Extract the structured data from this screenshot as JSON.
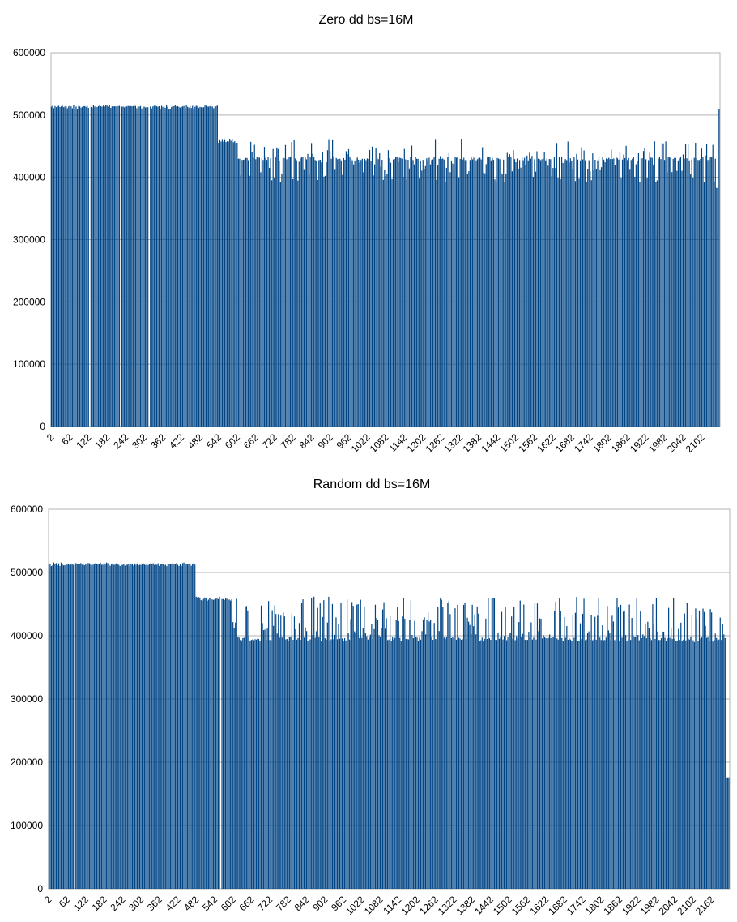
{
  "chart_data": [
    {
      "type": "bar",
      "title": "Zero dd bs=16M",
      "xlabel": "",
      "ylabel": "",
      "ylim": [
        0,
        600000
      ],
      "y_ticks": [
        "0",
        "100000",
        "200000",
        "300000",
        "400000",
        "500000",
        "600000"
      ],
      "x_start": 2,
      "x_step": 2,
      "x_end": 2160,
      "x_tick_labels": [
        "2",
        "62",
        "122",
        "182",
        "242",
        "302",
        "362",
        "422",
        "482",
        "542",
        "602",
        "662",
        "722",
        "782",
        "842",
        "902",
        "962",
        "1022",
        "1082",
        "1142",
        "1202",
        "1262",
        "1322",
        "1382",
        "1442",
        "1502",
        "1562",
        "1622",
        "1682",
        "1742",
        "1802",
        "1862",
        "1922",
        "1982",
        "2042",
        "2102"
      ],
      "grid": true,
      "legend": "none",
      "color": "#004586",
      "segments": [
        {
          "from": 2,
          "to": 542,
          "level": 513000,
          "min": 513000,
          "max": 515000
        },
        {
          "from": 542,
          "to": 600,
          "level": 459000,
          "min": 455000,
          "max": 462000
        },
        {
          "from": 600,
          "to": 2150,
          "level": 430000,
          "min": 392000,
          "max": 462000
        },
        {
          "from": 2150,
          "to": 2156,
          "level": 383000,
          "min": 383000,
          "max": 383000
        },
        {
          "from": 2156,
          "to": 2160,
          "level": 512000,
          "min": 510000,
          "max": 512000
        }
      ]
    },
    {
      "type": "bar",
      "title": "Random dd bs=16M",
      "xlabel": "",
      "ylabel": "",
      "ylim": [
        0,
        600000
      ],
      "y_ticks": [
        "0",
        "100000",
        "200000",
        "300000",
        "400000",
        "500000",
        "600000"
      ],
      "x_start": 2,
      "x_step": 2,
      "x_end": 2220,
      "x_tick_labels": [
        "2",
        "62",
        "122",
        "182",
        "242",
        "302",
        "362",
        "422",
        "482",
        "542",
        "602",
        "662",
        "722",
        "782",
        "842",
        "902",
        "962",
        "1022",
        "1082",
        "1142",
        "1202",
        "1262",
        "1322",
        "1382",
        "1442",
        "1502",
        "1562",
        "1622",
        "1682",
        "1742",
        "1802",
        "1862",
        "1922",
        "1982",
        "2042",
        "2102",
        "2162"
      ],
      "grid": true,
      "legend": "none",
      "color": "#004586",
      "segments": [
        {
          "from": 2,
          "to": 482,
          "level": 513000,
          "min": 512000,
          "max": 515000
        },
        {
          "from": 482,
          "to": 600,
          "level": 459000,
          "min": 455000,
          "max": 461000
        },
        {
          "from": 600,
          "to": 2208,
          "level": 395000,
          "min": 390000,
          "max": 462000
        },
        {
          "from": 2208,
          "to": 2220,
          "level": 176000,
          "min": 176000,
          "max": 176000
        }
      ]
    }
  ]
}
